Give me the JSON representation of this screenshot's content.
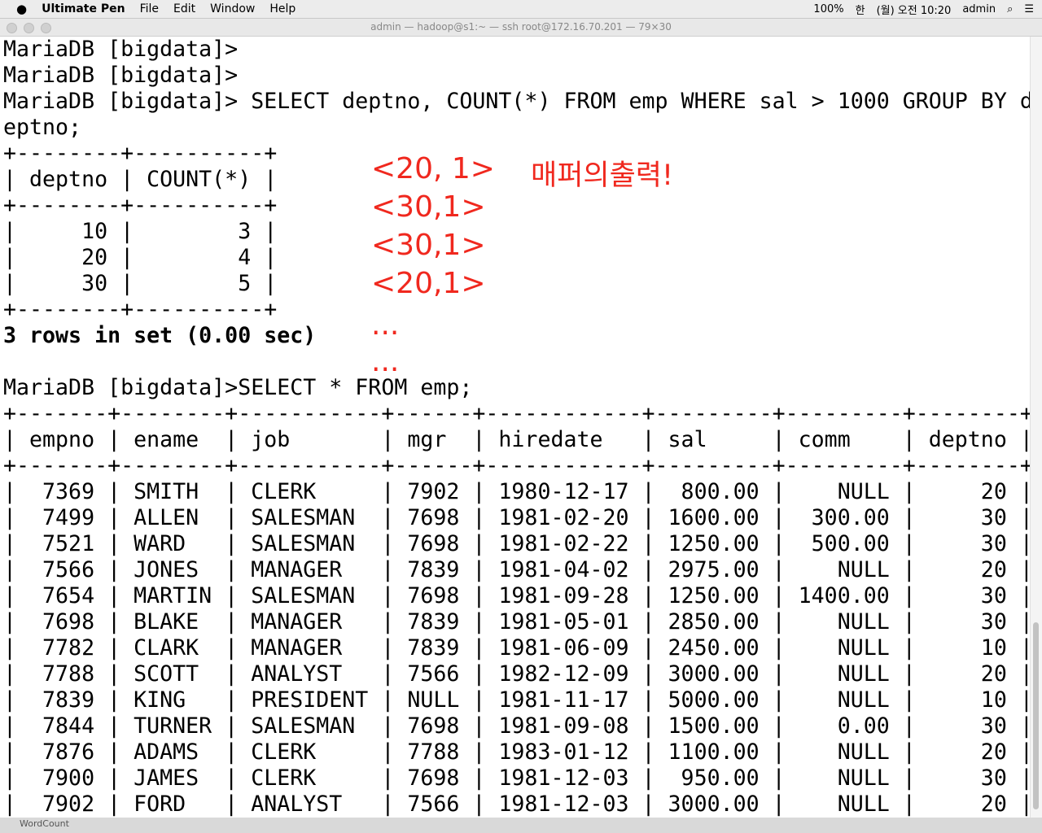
{
  "menubar": {
    "app": "Ultimate Pen",
    "items": [
      "File",
      "Edit",
      "Window",
      "Help"
    ],
    "status": {
      "battery": "100%",
      "input": "한",
      "clock": "(월) 오전 10:20",
      "user": "admin"
    }
  },
  "window": {
    "title": "admin — hadoop@s1:~ — ssh root@172.16.70.201 — 79×30"
  },
  "terminal": {
    "block1": [
      "MariaDB [bigdata]>",
      "MariaDB [bigdata]>",
      "MariaDB [bigdata]> SELECT deptno, COUNT(*) FROM emp WHERE sal > 1000 GROUP BY d",
      "eptno;",
      "+--------+----------+",
      "| deptno | COUNT(*) |",
      "+--------+----------+",
      "|     10 |        3 |",
      "|     20 |        4 |",
      "|     30 |        5 |",
      "+--------+----------+",
      "3 rows in set (0.00 sec)"
    ],
    "block2": [
      "MariaDB [bigdata]>SELECT * FROM emp;",
      "+-------+--------+-----------+------+------------+---------+---------+--------+",
      "| empno | ename  | job       | mgr  | hiredate   | sal     | comm    | deptno |",
      "+-------+--------+-----------+------+------------+---------+---------+--------+",
      "|  7369 | SMITH  | CLERK     | 7902 | 1980-12-17 |  800.00 |    NULL |     20 |",
      "|  7499 | ALLEN  | SALESMAN  | 7698 | 1981-02-20 | 1600.00 |  300.00 |     30 |",
      "|  7521 | WARD   | SALESMAN  | 7698 | 1981-02-22 | 1250.00 |  500.00 |     30 |",
      "|  7566 | JONES  | MANAGER   | 7839 | 1981-04-02 | 2975.00 |    NULL |     20 |",
      "|  7654 | MARTIN | SALESMAN  | 7698 | 1981-09-28 | 1250.00 | 1400.00 |     30 |",
      "|  7698 | BLAKE  | MANAGER   | 7839 | 1981-05-01 | 2850.00 |    NULL |     30 |",
      "|  7782 | CLARK  | MANAGER   | 7839 | 1981-06-09 | 2450.00 |    NULL |     10 |",
      "|  7788 | SCOTT  | ANALYST   | 7566 | 1982-12-09 | 3000.00 |    NULL |     20 |",
      "|  7839 | KING   | PRESIDENT | NULL | 1981-11-17 | 5000.00 |    NULL |     10 |",
      "|  7844 | TURNER | SALESMAN  | 7698 | 1981-09-08 | 1500.00 |    0.00 |     30 |",
      "|  7876 | ADAMS  | CLERK     | 7788 | 1983-01-12 | 1100.00 |    NULL |     20 |",
      "|  7900 | JAMES  | CLERK     | 7698 | 1981-12-03 |  950.00 |    NULL |     30 |",
      "|  7902 | FORD   | ANALYST   | 7566 | 1981-12-03 | 3000.00 |    NULL |     20 |"
    ]
  },
  "annotations": {
    "pairs": [
      "<20, 1>",
      "<30,1>",
      "<30,1>",
      "<20,1>",
      "...",
      "..."
    ],
    "note": "매퍼의출력!"
  },
  "dock": {
    "label": "WordCount"
  }
}
